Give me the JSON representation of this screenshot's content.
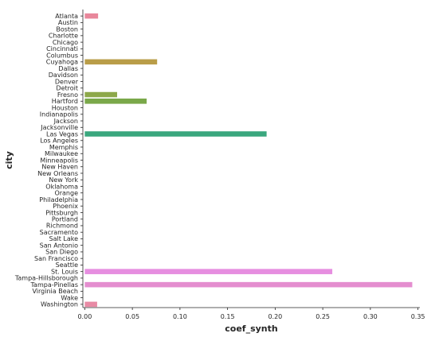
{
  "chart_data": {
    "type": "bar",
    "orientation": "horizontal",
    "xlabel": "coef_synth",
    "ylabel": "city",
    "xlim": [
      -0.002,
      0.352
    ],
    "x_ticks": [
      0.0,
      0.05,
      0.1,
      0.15,
      0.2,
      0.25,
      0.3,
      0.35
    ],
    "x_tick_labels": [
      "0.00",
      "0.05",
      "0.10",
      "0.15",
      "0.20",
      "0.25",
      "0.30",
      "0.35"
    ],
    "grid": false,
    "categories": [
      "Atlanta",
      "Austin",
      "Boston",
      "Charlotte",
      "Chicago",
      "Cincinnati",
      "Columbus",
      "Cuyahoga",
      "Dallas",
      "Davidson",
      "Denver",
      "Detroit",
      "Fresno",
      "Hartford",
      "Houston",
      "Indianapolis",
      "Jackson",
      "Jacksonville",
      "Las Vegas",
      "Los Angeles",
      "Memphis",
      "Milwaukee",
      "Minneapolis",
      "New Haven",
      "New Orleans",
      "New York",
      "Oklahoma",
      "Orange",
      "Philadelphia",
      "Phoenix",
      "Pittsburgh",
      "Portland",
      "Richmond",
      "Sacramento",
      "Salt Lake",
      "San Antonio",
      "San Diego",
      "San Francisco",
      "Seattle",
      "St. Louis",
      "Tampa-Hillsborough",
      "Tampa-Pinellas",
      "Virginia Beach",
      "Wake",
      "Washington"
    ],
    "values": [
      0.014,
      0.0,
      0.0,
      0.0,
      0.0,
      0.0,
      0.0,
      0.076,
      0.0,
      0.0,
      0.0,
      0.0,
      0.034,
      0.065,
      0.0,
      0.0,
      0.0,
      0.0,
      0.191,
      0.0,
      0.0,
      0.0,
      0.0,
      0.0,
      0.0,
      0.0,
      0.0,
      0.0,
      0.0,
      0.0,
      0.0,
      0.0,
      0.0,
      0.0,
      0.0,
      0.0,
      0.0,
      0.0,
      0.0,
      0.26,
      0.0,
      0.344,
      0.0,
      0.0,
      0.013
    ],
    "colors": [
      "#e8879b",
      "#e88b78",
      "#e08f5a",
      "#d59642",
      "#c99c3f",
      "#bba03e",
      "#aca43d",
      "#b99d48",
      "#9aa73d",
      "#88ab3d",
      "#74ae3e",
      "#5eb13f",
      "#8da84a",
      "#7aa84a",
      "#3cb36a",
      "#3bb37e",
      "#3bb28f",
      "#3bb29d",
      "#3aa77e",
      "#3baeb5",
      "#3cacc1",
      "#3ea9cf",
      "#42a4de",
      "#4b9eec",
      "#5b97f5",
      "#7a8ff6",
      "#9686f5",
      "#ac7ff4",
      "#c179f3",
      "#d372ef",
      "#e36bdc",
      "#ed6ac8",
      "#f06cb6",
      "#f36fa5",
      "#f47396",
      "#f5778a",
      "#f57b80",
      "#f37f7a",
      "#ef8476",
      "#e68ee0",
      "#e88ad8",
      "#e48ecf",
      "#e896c6",
      "#e99bb4",
      "#e88aa5"
    ]
  }
}
